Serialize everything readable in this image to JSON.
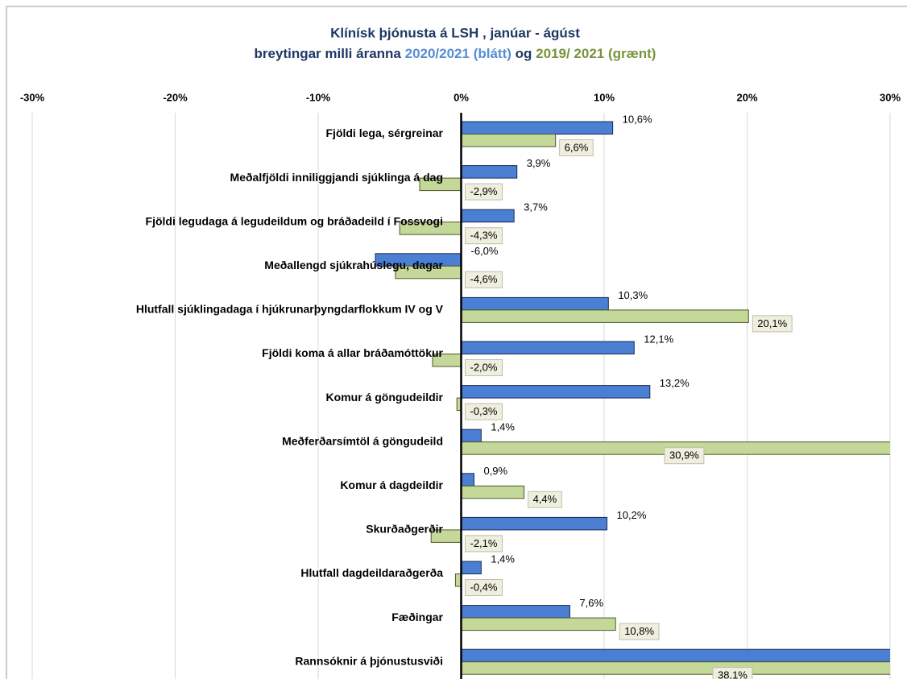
{
  "chart_data": {
    "type": "hbar",
    "title": "Klínísk þjónusta á LSH ,  janúar - ágúst",
    "subtitle": {
      "prefix": "breytingar milli áranna",
      "middle": "og"
    },
    "categories": [
      "Fjöldi lega, sérgreinar",
      "Meðalfjöldi inniliggjandi sjúklinga á dag",
      "Fjöldi legudaga á legudeildum og bráðadeild í Fossvogi",
      "Meðallengd sjúkrahúslegu, dagar",
      "Hlutfall sjúklingadaga í hjúkrunarþyngdarflokkum IV og V",
      "Fjöldi koma á allar bráðamóttökur",
      "Komur á göngudeildir",
      "Meðferðarsímtöl á göngudeild",
      "Komur á dagdeildir",
      "Skurðaðgerðir",
      "Hlutfall dagdeildaraðgerða",
      "Fæðingar",
      "Rannsóknir á þjónustusviði"
    ],
    "series": [
      {
        "name": "2020/2021 (blátt)",
        "color": "#4a7fd4",
        "values": [
          10.6,
          3.9,
          3.7,
          -6.0,
          10.3,
          12.1,
          13.2,
          1.4,
          0.9,
          10.2,
          1.4,
          7.6,
          35
        ],
        "value_labels": [
          "10,6%",
          "3,9%",
          "3,7%",
          "-6,0%",
          "10,3%",
          "12,1%",
          "13,2%",
          "1,4%",
          "0,9%",
          "10,2%",
          "1,4%",
          "7,6%",
          null
        ]
      },
      {
        "name": "2019/ 2021 (grænt)",
        "color": "#c4d89a",
        "values": [
          6.6,
          -2.9,
          -4.3,
          -4.6,
          20.1,
          -2.0,
          -0.3,
          30.9,
          4.4,
          -2.1,
          -0.4,
          10.8,
          38.1
        ],
        "value_labels": [
          "6,6%",
          "-2,9%",
          "-4,3%",
          "-4,6%",
          "20,1%",
          "-2,0%",
          "-0,3%",
          "30,9%",
          "4,4%",
          "-2,1%",
          "-0,4%",
          "10,8%",
          "38,1%"
        ]
      }
    ],
    "xlim": [
      -30,
      30
    ],
    "xticks": [
      {
        "value": -30,
        "label": "-30%"
      },
      {
        "value": -20,
        "label": "-20%"
      },
      {
        "value": -10,
        "label": "-10%"
      },
      {
        "value": 0,
        "label": "0%"
      },
      {
        "value": 10,
        "label": "10%"
      },
      {
        "value": 20,
        "label": "20%"
      },
      {
        "value": 30,
        "label": "30%"
      }
    ],
    "grid": true
  }
}
